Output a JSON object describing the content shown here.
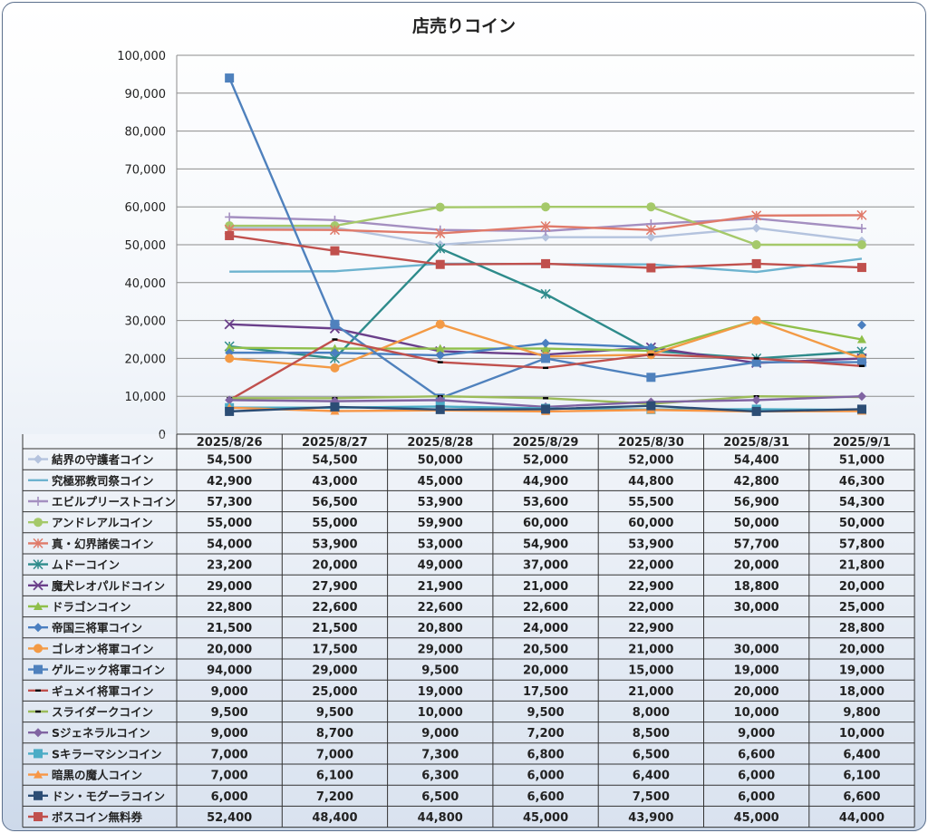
{
  "chart_data": {
    "type": "line",
    "title": "店売りコイン",
    "ylim": [
      0,
      100000
    ],
    "yticks": [
      "0",
      "10,000",
      "20,000",
      "30,000",
      "40,000",
      "50,000",
      "60,000",
      "70,000",
      "80,000",
      "90,000",
      "100,000"
    ],
    "grid": "horizontal",
    "legend": "data-table",
    "categories": [
      "2025/8/26",
      "2025/8/27",
      "2025/8/28",
      "2025/8/29",
      "2025/8/30",
      "2025/8/31",
      "2025/9/1"
    ],
    "series": [
      {
        "name": "結界の守護者コイン",
        "color": "#b4c3de",
        "marker": "diamond",
        "values": [
          54500,
          54500,
          50000,
          52000,
          52000,
          54400,
          51000
        ],
        "labels": [
          "54,500",
          "54,500",
          "50,000",
          "52,000",
          "52,000",
          "54,400",
          "51,000"
        ]
      },
      {
        "name": "究極邪教司祭コイン",
        "color": "#6db3cf",
        "marker": "none",
        "values": [
          42900,
          43000,
          45000,
          44900,
          44800,
          42800,
          46300
        ],
        "labels": [
          "42,900",
          "43,000",
          "45,000",
          "44,900",
          "44,800",
          "42,800",
          "46,300"
        ]
      },
      {
        "name": "エビルプリーストコイン",
        "color": "#a48fc0",
        "marker": "plus",
        "values": [
          57300,
          56500,
          53900,
          53600,
          55500,
          56900,
          54300
        ],
        "labels": [
          "57,300",
          "56,500",
          "53,900",
          "53,600",
          "55,500",
          "56,900",
          "54,300"
        ]
      },
      {
        "name": "アンドレアルコイン",
        "color": "#a5c96a",
        "marker": "circle",
        "values": [
          55000,
          55000,
          59900,
          60000,
          60000,
          50000,
          50000
        ],
        "labels": [
          "55,000",
          "55,000",
          "59,900",
          "60,000",
          "60,000",
          "50,000",
          "50,000"
        ]
      },
      {
        "name": "真・幻界諸侯コイン",
        "color": "#e07a6a",
        "marker": "asterisk",
        "values": [
          54000,
          53900,
          53000,
          54900,
          53900,
          57700,
          57800
        ],
        "labels": [
          "54,000",
          "53,900",
          "53,000",
          "54,900",
          "53,900",
          "57,700",
          "57,800"
        ]
      },
      {
        "name": "ムドーコイン",
        "color": "#2e8b8b",
        "marker": "asterisk",
        "values": [
          23200,
          20000,
          49000,
          37000,
          22000,
          20000,
          21800
        ],
        "labels": [
          "23,200",
          "20,000",
          "49,000",
          "37,000",
          "22,000",
          "20,000",
          "21,800"
        ]
      },
      {
        "name": "魔犬レオパルドコイン",
        "color": "#6a3f8a",
        "marker": "x",
        "values": [
          29000,
          27900,
          21900,
          21000,
          22900,
          18800,
          20000
        ],
        "labels": [
          "29,000",
          "27,900",
          "21,900",
          "21,000",
          "22,900",
          "18,800",
          "20,000"
        ]
      },
      {
        "name": "ドラゴンコイン",
        "color": "#8fbf4a",
        "marker": "triangle",
        "values": [
          22800,
          22600,
          22600,
          22600,
          22000,
          30000,
          25000
        ],
        "labels": [
          "22,800",
          "22,600",
          "22,600",
          "22,600",
          "22,000",
          "30,000",
          "25,000"
        ]
      },
      {
        "name": "帝国三将軍コイン",
        "color": "#4a7fc0",
        "marker": "diamond",
        "values": [
          21500,
          21500,
          20800,
          24000,
          22900,
          null,
          28800
        ],
        "labels": [
          "21,500",
          "21,500",
          "20,800",
          "24,000",
          "22,900",
          "",
          "28,800"
        ]
      },
      {
        "name": "ゴレオン将軍コイン",
        "color": "#f39a45",
        "marker": "circle",
        "values": [
          20000,
          17500,
          29000,
          20500,
          21000,
          30000,
          20000
        ],
        "labels": [
          "20,000",
          "17,500",
          "29,000",
          "20,500",
          "21,000",
          "30,000",
          "20,000"
        ]
      },
      {
        "name": "ゲルニック将軍コイン",
        "color": "#4f81bd",
        "marker": "square",
        "values": [
          94000,
          29000,
          9500,
          20000,
          15000,
          19000,
          19000
        ],
        "labels": [
          "94,000",
          "29,000",
          "9,500",
          "20,000",
          "15,000",
          "19,000",
          "19,000"
        ]
      },
      {
        "name": "ギュメイ将軍コイン",
        "color": "#c0504d",
        "marker": "dash",
        "values": [
          9000,
          25000,
          19000,
          17500,
          21000,
          20000,
          18000
        ],
        "labels": [
          "9,000",
          "25,000",
          "19,000",
          "17,500",
          "21,000",
          "20,000",
          "18,000"
        ]
      },
      {
        "name": "スライダークコイン",
        "color": "#9bbb59",
        "marker": "dash",
        "values": [
          9500,
          9500,
          10000,
          9500,
          8000,
          10000,
          9800
        ],
        "labels": [
          "9,500",
          "9,500",
          "10,000",
          "9,500",
          "8,000",
          "10,000",
          "9,800"
        ]
      },
      {
        "name": "Sジェネラルコイン",
        "color": "#8064a2",
        "marker": "diamond",
        "values": [
          9000,
          8700,
          9000,
          7200,
          8500,
          9000,
          10000
        ],
        "labels": [
          "9,000",
          "8,700",
          "9,000",
          "7,200",
          "8,500",
          "9,000",
          "10,000"
        ]
      },
      {
        "name": "Sキラーマシンコイン",
        "color": "#4bacc6",
        "marker": "square",
        "values": [
          7000,
          7000,
          7300,
          6800,
          6500,
          6600,
          6400
        ],
        "labels": [
          "7,000",
          "7,000",
          "7,300",
          "6,800",
          "6,500",
          "6,600",
          "6,400"
        ]
      },
      {
        "name": "暗黒の魔人コイン",
        "color": "#f79646",
        "marker": "triangle",
        "values": [
          7000,
          6100,
          6300,
          6000,
          6400,
          6000,
          6100
        ],
        "labels": [
          "7,000",
          "6,100",
          "6,300",
          "6,000",
          "6,400",
          "6,000",
          "6,100"
        ]
      },
      {
        "name": "ドン・モグーラコイン",
        "color": "#2c4d75",
        "marker": "square",
        "values": [
          6000,
          7200,
          6500,
          6600,
          7500,
          6000,
          6600
        ],
        "labels": [
          "6,000",
          "7,200",
          "6,500",
          "6,600",
          "7,500",
          "6,000",
          "6,600"
        ]
      },
      {
        "name": "ボスコイン無料券",
        "color": "#c0504d",
        "marker": "square",
        "values": [
          52400,
          48400,
          44800,
          45000,
          43900,
          45000,
          44000
        ],
        "labels": [
          "52,400",
          "48,400",
          "44,800",
          "45,000",
          "43,900",
          "45,000",
          "44,000"
        ]
      }
    ]
  }
}
